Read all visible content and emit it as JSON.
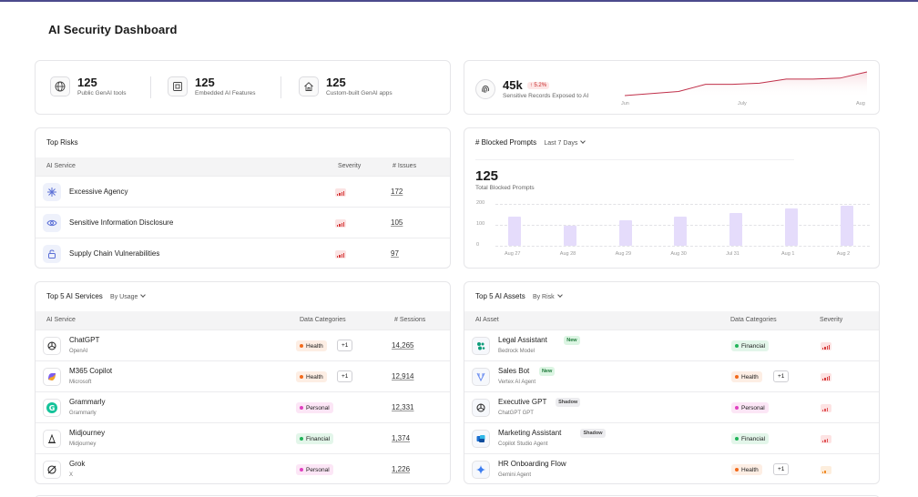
{
  "page_title": "AI Security Dashboard",
  "summary": {
    "stats": [
      {
        "value": "125",
        "label": "Public GenAI tools",
        "icon": "globe-icon"
      },
      {
        "value": "125",
        "label": "Embedded AI Features",
        "icon": "chip-icon"
      },
      {
        "value": "125",
        "label": "Custom-built GenAI apps",
        "icon": "home-icon"
      }
    ]
  },
  "sensitive": {
    "value": "45k",
    "change": "5.2%",
    "label": "Sensitive Records Exposed to AI",
    "axis": [
      "Jun",
      "July",
      "Aug"
    ],
    "trend": [
      10,
      12,
      14,
      21,
      21,
      22,
      26,
      26,
      27,
      33
    ],
    "accent": "#c0304a"
  },
  "top_risks": {
    "title": "Top Risks",
    "columns": [
      "AI Service",
      "Severity",
      "# Issues"
    ],
    "rows": [
      {
        "name": "Excessive Agency",
        "issues": "172",
        "icon": "sparkle-icon"
      },
      {
        "name": "Sensitive Information Disclosure",
        "issues": "105",
        "icon": "eye-icon"
      },
      {
        "name": "Supply Chain Vulnerabilities",
        "issues": "97",
        "icon": "unlock-icon"
      }
    ]
  },
  "blocked": {
    "title": "# Blocked Prompts",
    "period": "Last 7 Days",
    "value": "125",
    "label": "Total Blocked Prompts"
  },
  "chart_data": {
    "type": "bar",
    "categories": [
      "Aug 27",
      "Aug 28",
      "Aug 29",
      "Aug 30",
      "Jul 31",
      "Aug 1",
      "Aug 2"
    ],
    "values": [
      140,
      95,
      120,
      140,
      155,
      180,
      190
    ],
    "ylim": [
      0,
      200
    ],
    "yticks": [
      "0",
      "100",
      "200"
    ],
    "bar_color": "#e5dcfb"
  },
  "top_services": {
    "title": "Top 5 AI Services",
    "sort": "By Usage",
    "columns": [
      "AI Service",
      "Data Categories",
      "# Sessions"
    ],
    "rows": [
      {
        "name": "ChatGPT",
        "vendor": "OpenAI",
        "category": "Health",
        "extra": "+1",
        "sessions": "14,265",
        "icon": "openai-icon"
      },
      {
        "name": "M365 Copilot",
        "vendor": "Microsoft",
        "category": "Health",
        "extra": "+1",
        "sessions": "12,914",
        "icon": "copilot-icon"
      },
      {
        "name": "Grammarly",
        "vendor": "Grammarly",
        "category": "Personal",
        "extra": "",
        "sessions": "12,331",
        "icon": "grammarly-icon"
      },
      {
        "name": "Midjourney",
        "vendor": "Midjourney",
        "category": "Financial",
        "extra": "",
        "sessions": "1,374",
        "icon": "midjourney-icon"
      },
      {
        "name": "Grok",
        "vendor": "X",
        "category": "Personal",
        "extra": "",
        "sessions": "1,226",
        "icon": "grok-icon"
      }
    ]
  },
  "top_assets": {
    "title": "Top 5 AI Assets",
    "sort": "By Risk",
    "columns": [
      "AI Asset",
      "Data Categories",
      "Severity"
    ],
    "rows": [
      {
        "name": "Legal Assistant",
        "badge": "New",
        "type": "Bedrock Model",
        "category": "Financial",
        "extra": "",
        "icon": "bedrock-icon"
      },
      {
        "name": "Sales Bot",
        "badge": "New",
        "type": "Vertex AI Agent",
        "category": "Health",
        "extra": "+1",
        "icon": "vertex-icon"
      },
      {
        "name": "Executive GPT",
        "badge": "Shadow",
        "type": "ChatGPT GPT",
        "category": "Personal",
        "extra": "",
        "icon": "openai-icon"
      },
      {
        "name": "Marketing Assistant",
        "badge": "Shadow",
        "type": "Copilot Studio Agent",
        "category": "Financial",
        "extra": "",
        "icon": "copilot-studio-icon"
      },
      {
        "name": "HR Onboarding Flow",
        "badge": "",
        "type": "Gemini Agent",
        "category": "Health",
        "extra": "+1",
        "icon": "gemini-icon"
      }
    ]
  },
  "category_colors": {
    "Health": {
      "dot": "#f26a1b",
      "bg": "#fdeee4"
    },
    "Personal": {
      "dot": "#e040c0",
      "bg": "#fce6f6"
    },
    "Financial": {
      "dot": "#22b45a",
      "bg": "#e3f6ea"
    }
  },
  "badge_colors": {
    "New": {
      "fg": "#1e7a3a",
      "bg": "#dcf5e3"
    },
    "Shadow": {
      "fg": "#444",
      "bg": "#ececef"
    }
  }
}
